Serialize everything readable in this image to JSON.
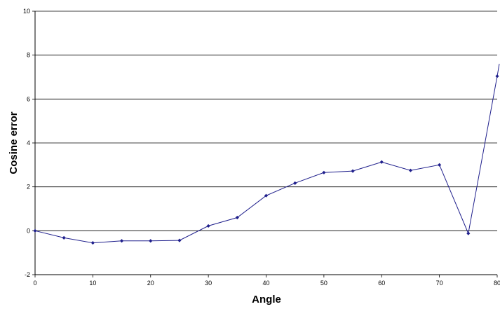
{
  "chart_data": {
    "type": "line",
    "title": "",
    "xlabel": "Angle",
    "ylabel": "Cosine error",
    "xlim": [
      0,
      80
    ],
    "ylim": [
      -2,
      10
    ],
    "x_ticks": [
      0,
      10,
      20,
      30,
      40,
      50,
      60,
      70,
      80
    ],
    "y_ticks": [
      -2,
      0,
      2,
      4,
      6,
      8,
      10
    ],
    "x_tick_labels": [
      "0",
      "10",
      "20",
      "30",
      "40",
      "50",
      "60",
      "70",
      "80"
    ],
    "y_tick_labels": [
      "-2",
      "0",
      "2",
      "4",
      "6",
      "8",
      "10"
    ],
    "grid": "horizontal",
    "legend": "none",
    "series": [
      {
        "color": "#1f1f8c",
        "marker": "diamond",
        "x": [
          0,
          5,
          10,
          15,
          20,
          25,
          30,
          35,
          40,
          45,
          50,
          55,
          60,
          65,
          70,
          75,
          80
        ],
        "y": [
          0.0,
          -0.32,
          -0.55,
          -0.46,
          -0.46,
          -0.44,
          0.22,
          0.6,
          1.6,
          2.17,
          2.65,
          2.72,
          3.13,
          2.75,
          3.0,
          -0.12,
          7.04
        ]
      }
    ],
    "continuation_past_axis": {
      "x": 81,
      "y": 7.6
    }
  }
}
